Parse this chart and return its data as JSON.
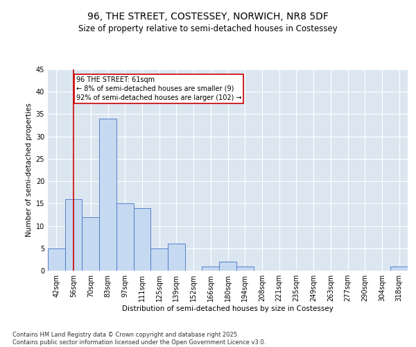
{
  "title1": "96, THE STREET, COSTESSEY, NORWICH, NR8 5DF",
  "title2": "Size of property relative to semi-detached houses in Costessey",
  "xlabel": "Distribution of semi-detached houses by size in Costessey",
  "ylabel": "Number of semi-detached properties",
  "categories": [
    "42sqm",
    "56sqm",
    "70sqm",
    "83sqm",
    "97sqm",
    "111sqm",
    "125sqm",
    "139sqm",
    "152sqm",
    "166sqm",
    "180sqm",
    "194sqm",
    "208sqm",
    "221sqm",
    "235sqm",
    "249sqm",
    "263sqm",
    "277sqm",
    "290sqm",
    "304sqm",
    "318sqm"
  ],
  "values": [
    5,
    16,
    12,
    34,
    15,
    14,
    5,
    6,
    0,
    1,
    2,
    1,
    0,
    0,
    0,
    0,
    0,
    0,
    0,
    0,
    1
  ],
  "bar_color": "#c5d9f1",
  "bar_edge_color": "#4472c4",
  "bg_color": "#dce6f1",
  "grid_color": "#ffffff",
  "vline_x": 1,
  "vline_color": "#cc0000",
  "annotation_text": "96 THE STREET: 61sqm\n← 8% of semi-detached houses are smaller (9)\n92% of semi-detached houses are larger (102) →",
  "annotation_box_color": "#cc0000",
  "ylim": [
    0,
    45
  ],
  "yticks": [
    0,
    5,
    10,
    15,
    20,
    25,
    30,
    35,
    40,
    45
  ],
  "footer": "Contains HM Land Registry data © Crown copyright and database right 2025.\nContains public sector information licensed under the Open Government Licence v3.0.",
  "title_fontsize": 10,
  "subtitle_fontsize": 8.5,
  "axis_label_fontsize": 7.5,
  "tick_fontsize": 7,
  "annotation_fontsize": 7,
  "footer_fontsize": 6
}
